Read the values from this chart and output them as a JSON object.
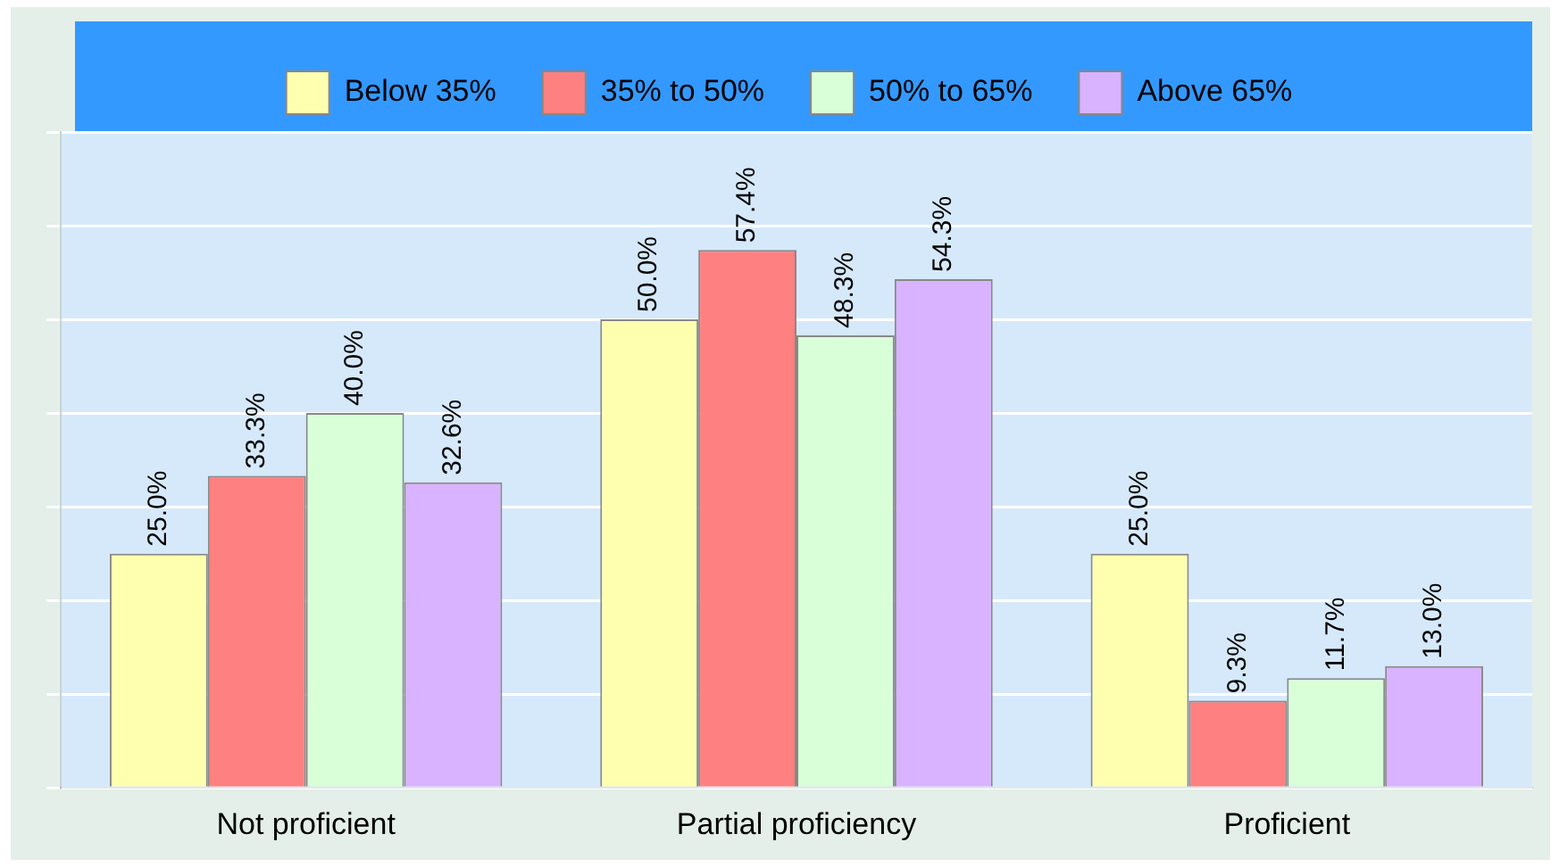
{
  "chart_data": {
    "type": "bar",
    "categories": [
      "Not proficient",
      "Partial proficiency",
      "Proficient"
    ],
    "series": [
      {
        "name": "Below 35%",
        "color": "#ffffb0",
        "values": [
          25.0,
          50.0,
          25.0
        ],
        "value_labels": [
          "25.0%",
          "50.0%",
          "25.0%"
        ]
      },
      {
        "name": "35% to 50%",
        "color": "#ff8080",
        "values": [
          33.3,
          57.4,
          9.3
        ],
        "value_labels": [
          "33.3%",
          "57.4%",
          "9.3%"
        ]
      },
      {
        "name": "50% to 65%",
        "color": "#d9ffd9",
        "values": [
          40.0,
          48.3,
          11.7
        ],
        "value_labels": [
          "40.0%",
          "48.3%",
          "11.7%"
        ]
      },
      {
        "name": "Above 65%",
        "color": "#d9b3ff",
        "values": [
          32.6,
          54.3,
          13.0
        ],
        "value_labels": [
          "32.6%",
          "54.3%",
          "13.0%"
        ]
      }
    ],
    "grid": "y",
    "legend": "top",
    "tick_labels": "x"
  }
}
